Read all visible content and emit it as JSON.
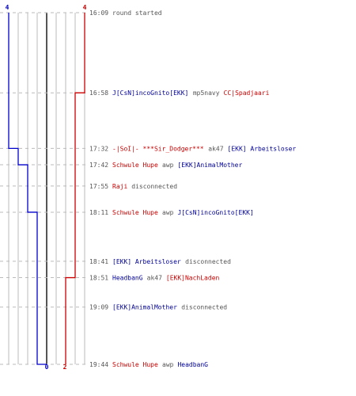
{
  "chart_data": {
    "type": "line",
    "title": "",
    "colors": {
      "blue": "#0000cc",
      "red": "#cc0000",
      "grid": "#bbbbbb",
      "center": "#555555",
      "dash": "#bbbbbb",
      "text": "#555555",
      "blue_text": "#000099"
    },
    "start_values": {
      "blue": "4",
      "red": "4"
    },
    "end_values": {
      "blue": "0",
      "red": "2"
    },
    "series": [
      {
        "color": "blue",
        "times": [
          "16:09",
          "17:32",
          "17:42",
          "18:11",
          "19:44"
        ],
        "values": [
          4,
          3,
          2,
          1,
          0
        ]
      },
      {
        "color": "red",
        "times": [
          "16:09",
          "16:58",
          "18:51",
          "19:44"
        ],
        "values": [
          4,
          3,
          2,
          2
        ]
      }
    ],
    "events": [
      {
        "time": "16:09",
        "parts": [
          {
            "text": "round started",
            "color": "gray"
          }
        ]
      },
      {
        "time": "16:58",
        "parts": [
          {
            "text": "J[CsN]incoGnito[EKK]",
            "color": "blue"
          },
          {
            "text": "mp5navy",
            "color": "gray"
          },
          {
            "text": "CC|Spadjaari",
            "color": "red"
          }
        ]
      },
      {
        "time": "17:32",
        "parts": [
          {
            "text": "-|SoI|- ***Sir_Dodger***",
            "color": "red"
          },
          {
            "text": "ak47",
            "color": "gray"
          },
          {
            "text": "[EKK] Arbeitsloser",
            "color": "blue"
          }
        ]
      },
      {
        "time": "17:42",
        "parts": [
          {
            "text": "Schwule Hupe",
            "color": "red"
          },
          {
            "text": "awp",
            "color": "gray"
          },
          {
            "text": "[EKK]AnimalMother",
            "color": "blue"
          }
        ]
      },
      {
        "time": "17:55",
        "parts": [
          {
            "text": "Raji",
            "color": "red"
          },
          {
            "text": "disconnected",
            "color": "gray"
          }
        ]
      },
      {
        "time": "18:11",
        "parts": [
          {
            "text": "Schwule Hupe",
            "color": "red"
          },
          {
            "text": "awp",
            "color": "gray"
          },
          {
            "text": "J[CsN]incoGnito[EKK]",
            "color": "blue"
          }
        ]
      },
      {
        "time": "18:41",
        "parts": [
          {
            "text": "[EKK] Arbeitsloser",
            "color": "blue"
          },
          {
            "text": "disconnected",
            "color": "gray"
          }
        ]
      },
      {
        "time": "18:51",
        "parts": [
          {
            "text": "HeadbanG",
            "color": "blue"
          },
          {
            "text": "ak47",
            "color": "gray"
          },
          {
            "text": "[EKK]NachLaden",
            "color": "red"
          }
        ]
      },
      {
        "time": "19:09",
        "parts": [
          {
            "text": "[EKK]AnimalMother",
            "color": "blue"
          },
          {
            "text": "disconnected",
            "color": "gray"
          }
        ]
      },
      {
        "time": "19:44",
        "parts": [
          {
            "text": "Schwule Hupe",
            "color": "red"
          },
          {
            "text": "awp",
            "color": "gray"
          },
          {
            "text": "HeadbanG",
            "color": "blue"
          }
        ]
      }
    ]
  }
}
